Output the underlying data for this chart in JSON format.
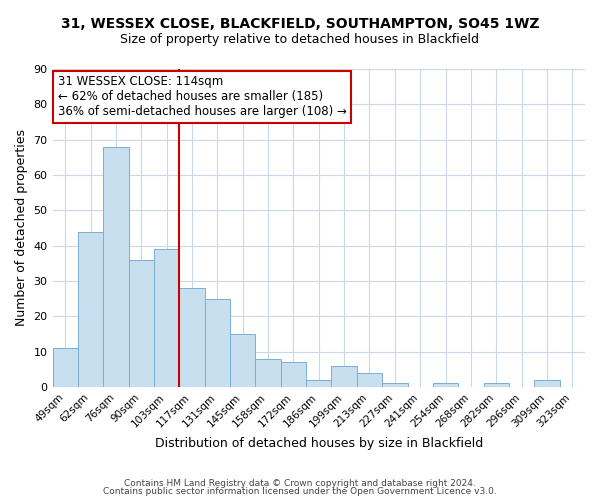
{
  "title_line1": "31, WESSEX CLOSE, BLACKFIELD, SOUTHAMPTON, SO45 1WZ",
  "title_line2": "Size of property relative to detached houses in Blackfield",
  "xlabel": "Distribution of detached houses by size in Blackfield",
  "ylabel": "Number of detached properties",
  "footer_line1": "Contains HM Land Registry data © Crown copyright and database right 2024.",
  "footer_line2": "Contains public sector information licensed under the Open Government Licence v3.0.",
  "bar_labels": [
    "49sqm",
    "62sqm",
    "76sqm",
    "90sqm",
    "103sqm",
    "117sqm",
    "131sqm",
    "145sqm",
    "158sqm",
    "172sqm",
    "186sqm",
    "199sqm",
    "213sqm",
    "227sqm",
    "241sqm",
    "254sqm",
    "268sqm",
    "282sqm",
    "296sqm",
    "309sqm",
    "323sqm"
  ],
  "bar_values": [
    11,
    44,
    68,
    36,
    39,
    28,
    25,
    15,
    8,
    7,
    2,
    6,
    4,
    1,
    0,
    1,
    0,
    1,
    0,
    2,
    0
  ],
  "bar_color": "#c8dff0",
  "bar_edge_color": "#7bafd4",
  "vline_x_index": 5,
  "vline_color": "#cc0000",
  "annotation_title": "31 WESSEX CLOSE: 114sqm",
  "annotation_line2": "← 62% of detached houses are smaller (185)",
  "annotation_line3": "36% of semi-detached houses are larger (108) →",
  "annotation_box_color": "#ffffff",
  "annotation_box_edge": "#cc0000",
  "ylim": [
    0,
    90
  ],
  "yticks": [
    0,
    10,
    20,
    30,
    40,
    50,
    60,
    70,
    80,
    90
  ],
  "background_color": "#ffffff",
  "grid_color": "#c8d8e8",
  "title_fontsize": 10,
  "subtitle_fontsize": 9,
  "ylabel_fontsize": 9,
  "xlabel_fontsize": 9,
  "tick_fontsize": 7.5,
  "footer_fontsize": 6.5
}
